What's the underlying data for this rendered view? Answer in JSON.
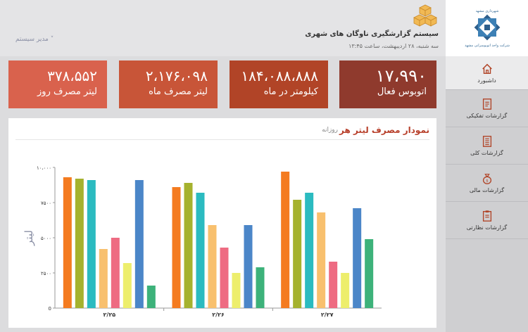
{
  "header": {
    "app_title": "سیستم گزارشگیری ناوگان های شهری",
    "app_date": "سه شنبه، ۲۸ اردیبهشت، ساعت ۱۳:۴۵",
    "user_menu": "مدیر سیستم ˅",
    "logo_text": "شرکت واحد اتوبوسرانی مشهد"
  },
  "sidebar": {
    "items": [
      {
        "label": "داشبورد",
        "icon": "home-icon",
        "active": true
      },
      {
        "label": "گزارشات تفکیکی",
        "icon": "report-detail-icon"
      },
      {
        "label": "گزارشات کلی",
        "icon": "report-general-icon"
      },
      {
        "label": "گزارشات مالی",
        "icon": "money-bag-icon"
      },
      {
        "label": "گزارشات نظارتی",
        "icon": "clipboard-icon"
      }
    ]
  },
  "cards": [
    {
      "value": "۱۷،۹۹۰",
      "label": "اتوبوس فعال",
      "color": "#8f3a2d"
    },
    {
      "value": "۱۸۴،۰۸۸،۸۸۸",
      "label": "کیلومتر در ماه",
      "color": "#b14427"
    },
    {
      "value": "۲،۱۷۶،۰۹۸",
      "label": "لیتر مصرف ماه",
      "color": "#c85538"
    },
    {
      "value": "۳۷۸،۵۵۲",
      "label": "لیتر مصرف روز",
      "color": "#d9624d"
    }
  ],
  "panel": {
    "title": "نمودار مصرف لیتر هر",
    "subtitle": "روزانه"
  },
  "chart_data": {
    "type": "bar",
    "ylabel": "لیتر",
    "ylim": [
      0,
      10000
    ],
    "yticks": [
      "0",
      "۲۵۰۰",
      "۵۰۰۰",
      "۷۵۰۰",
      "۱۰،۰۰۰"
    ],
    "categories": [
      "۲/۲۵",
      "۲/۲۶",
      "۲/۲۷"
    ],
    "colors": [
      "#f47b20",
      "#a5b22e",
      "#2bbbc0",
      "#f8c06e",
      "#ee6b82",
      "#edee6c",
      "#4b86c8",
      "#3db27a"
    ],
    "groups": [
      [
        9300,
        9200,
        9100,
        4200,
        5000,
        3200,
        9100,
        1600
      ],
      [
        8600,
        8900,
        8200,
        5900,
        4300,
        2500,
        5900,
        2900
      ],
      [
        9700,
        7700,
        8200,
        6800,
        3300,
        2500,
        7100,
        4900
      ]
    ]
  },
  "footer_chart": {
    "note": ""
  }
}
